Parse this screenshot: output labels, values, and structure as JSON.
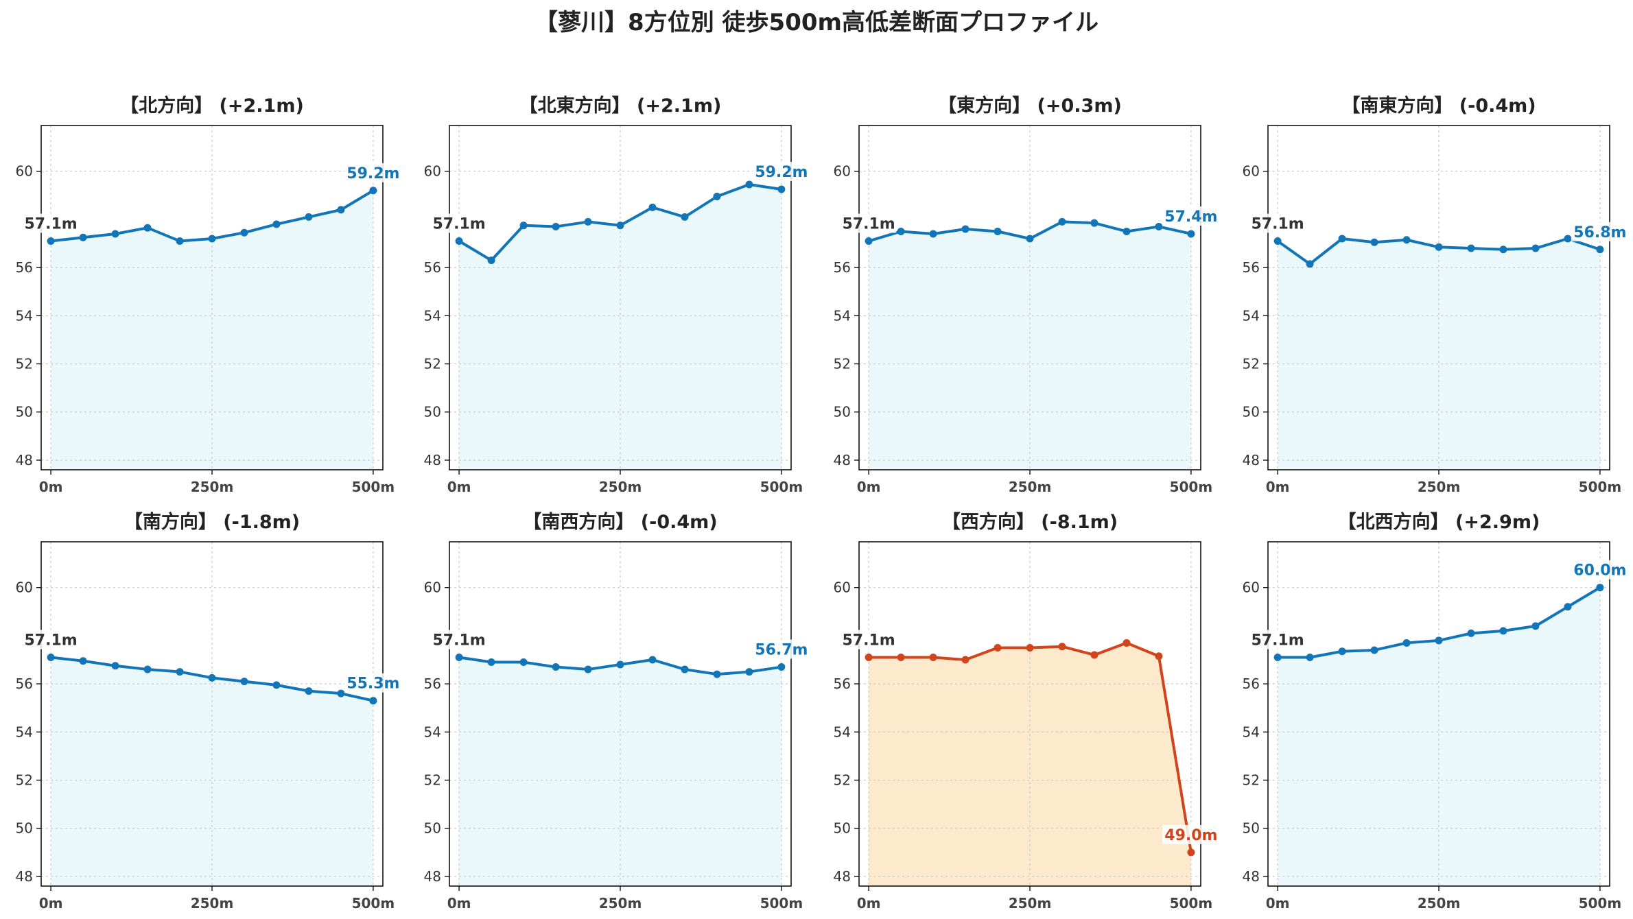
{
  "title": "【蓼川】8方位別 徒歩500m高低差断面プロファイル",
  "colors": {
    "rise": "#1275b8",
    "rise_fill": "#eaf7fb",
    "fall": "#d1451c",
    "fall_fill": "#fde9cc",
    "grid": "#c8c8c8",
    "tick_text": "#333333"
  },
  "chart_data": [
    {
      "type": "area",
      "title": "【北方向】 (+2.1m)",
      "color": "rise",
      "x": [
        0,
        50,
        100,
        150,
        200,
        250,
        300,
        350,
        400,
        450,
        500
      ],
      "y": [
        57.1,
        57.25,
        57.4,
        57.65,
        57.1,
        57.2,
        57.45,
        57.8,
        58.1,
        58.4,
        59.2
      ],
      "start_label": "57.1m",
      "end_label": "59.2m",
      "xticks": [
        "0m",
        "250m",
        "500m"
      ],
      "yticks": [
        "48",
        "50",
        "52",
        "54",
        "56",
        "60"
      ],
      "xlim": [
        -15,
        515
      ],
      "ylim": [
        47.6,
        61.9
      ],
      "grid": true
    },
    {
      "type": "area",
      "title": "【北東方向】 (+2.1m)",
      "color": "rise",
      "x": [
        0,
        50,
        100,
        150,
        200,
        250,
        300,
        350,
        400,
        450,
        500
      ],
      "y": [
        57.1,
        56.3,
        57.75,
        57.7,
        57.9,
        57.75,
        58.5,
        58.1,
        58.95,
        59.45,
        59.25
      ],
      "start_label": "57.1m",
      "end_label": "59.2m",
      "xticks": [
        "0m",
        "250m",
        "500m"
      ],
      "yticks": [
        "48",
        "50",
        "52",
        "54",
        "56",
        "60"
      ],
      "xlim": [
        -15,
        515
      ],
      "ylim": [
        47.6,
        61.9
      ],
      "grid": true
    },
    {
      "type": "area",
      "title": "【東方向】 (+0.3m)",
      "color": "rise",
      "x": [
        0,
        50,
        100,
        150,
        200,
        250,
        300,
        350,
        400,
        450,
        500
      ],
      "y": [
        57.1,
        57.5,
        57.4,
        57.6,
        57.5,
        57.2,
        57.9,
        57.85,
        57.5,
        57.7,
        57.4
      ],
      "start_label": "57.1m",
      "end_label": "57.4m",
      "xticks": [
        "0m",
        "250m",
        "500m"
      ],
      "yticks": [
        "48",
        "50",
        "52",
        "54",
        "56",
        "60"
      ],
      "xlim": [
        -15,
        515
      ],
      "ylim": [
        47.6,
        61.9
      ],
      "grid": true
    },
    {
      "type": "area",
      "title": "【南東方向】 (-0.4m)",
      "color": "rise",
      "x": [
        0,
        50,
        100,
        150,
        200,
        250,
        300,
        350,
        400,
        450,
        500
      ],
      "y": [
        57.1,
        56.15,
        57.2,
        57.05,
        57.15,
        56.85,
        56.8,
        56.75,
        56.8,
        57.2,
        56.75
      ],
      "start_label": "57.1m",
      "end_label": "56.8m",
      "xticks": [
        "0m",
        "250m",
        "500m"
      ],
      "yticks": [
        "48",
        "50",
        "52",
        "54",
        "56",
        "60"
      ],
      "xlim": [
        -15,
        515
      ],
      "ylim": [
        47.6,
        61.9
      ],
      "grid": true
    },
    {
      "type": "area",
      "title": "【南方向】 (-1.8m)",
      "color": "rise",
      "x": [
        0,
        50,
        100,
        150,
        200,
        250,
        300,
        350,
        400,
        450,
        500
      ],
      "y": [
        57.1,
        56.95,
        56.75,
        56.6,
        56.5,
        56.25,
        56.1,
        55.95,
        55.7,
        55.6,
        55.3
      ],
      "start_label": "57.1m",
      "end_label": "55.3m",
      "xticks": [
        "0m",
        "250m",
        "500m"
      ],
      "yticks": [
        "48",
        "50",
        "52",
        "54",
        "56",
        "60"
      ],
      "xlim": [
        -15,
        515
      ],
      "ylim": [
        47.6,
        61.9
      ],
      "grid": true
    },
    {
      "type": "area",
      "title": "【南西方向】 (-0.4m)",
      "color": "rise",
      "x": [
        0,
        50,
        100,
        150,
        200,
        250,
        300,
        350,
        400,
        450,
        500
      ],
      "y": [
        57.1,
        56.9,
        56.9,
        56.7,
        56.6,
        56.8,
        57.0,
        56.6,
        56.4,
        56.5,
        56.7
      ],
      "start_label": "57.1m",
      "end_label": "56.7m",
      "xticks": [
        "0m",
        "250m",
        "500m"
      ],
      "yticks": [
        "48",
        "50",
        "52",
        "54",
        "56",
        "60"
      ],
      "xlim": [
        -15,
        515
      ],
      "ylim": [
        47.6,
        61.9
      ],
      "grid": true
    },
    {
      "type": "area",
      "title": "【西方向】 (-8.1m)",
      "color": "fall",
      "x": [
        0,
        50,
        100,
        150,
        200,
        250,
        300,
        350,
        400,
        450,
        500
      ],
      "y": [
        57.1,
        57.1,
        57.1,
        57.0,
        57.5,
        57.5,
        57.55,
        57.2,
        57.7,
        57.15,
        49.0
      ],
      "start_label": "57.1m",
      "end_label": "49.0m",
      "xticks": [
        "0m",
        "250m",
        "500m"
      ],
      "yticks": [
        "48",
        "50",
        "52",
        "54",
        "56",
        "60"
      ],
      "xlim": [
        -15,
        515
      ],
      "ylim": [
        47.6,
        61.9
      ],
      "grid": true
    },
    {
      "type": "area",
      "title": "【北西方向】 (+2.9m)",
      "color": "rise",
      "x": [
        0,
        50,
        100,
        150,
        200,
        250,
        300,
        350,
        400,
        450,
        500
      ],
      "y": [
        57.1,
        57.1,
        57.35,
        57.4,
        57.7,
        57.8,
        58.1,
        58.2,
        58.4,
        59.2,
        60.0
      ],
      "start_label": "57.1m",
      "end_label": "60.0m",
      "xticks": [
        "0m",
        "250m",
        "500m"
      ],
      "yticks": [
        "48",
        "50",
        "52",
        "54",
        "56",
        "60"
      ],
      "xlim": [
        -15,
        515
      ],
      "ylim": [
        47.6,
        61.9
      ],
      "grid": true
    }
  ]
}
